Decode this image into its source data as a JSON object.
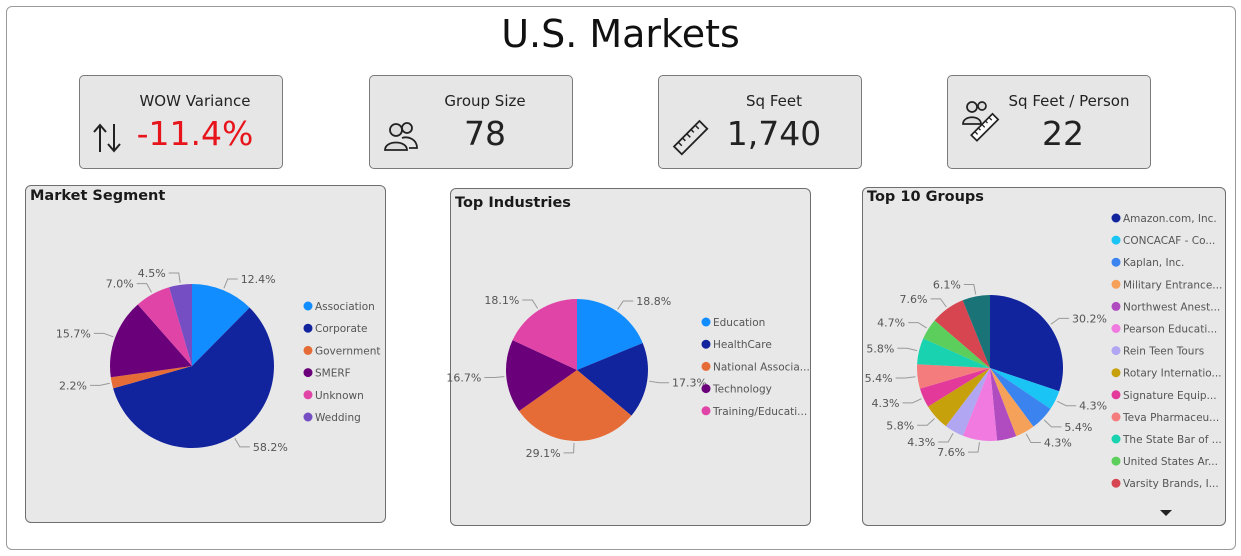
{
  "page": {
    "title": "U.S. Markets"
  },
  "kpis": [
    {
      "label": "WOW Variance",
      "value": "-11.4%",
      "icon": "up-down-arrows-icon",
      "negative": true
    },
    {
      "label": "Group Size",
      "value": "78",
      "icon": "people-group-icon",
      "negative": false
    },
    {
      "label": "Sq Feet",
      "value": "1,740",
      "icon": "ruler-icon",
      "negative": false
    },
    {
      "label": "Sq Feet / Person",
      "value": "22",
      "icon": "people-ruler-icon",
      "negative": false
    }
  ],
  "chart_data": [
    {
      "type": "pie",
      "title": "Market Segment",
      "legend": "right",
      "series": [
        {
          "name": "Association",
          "value": 12.4,
          "label": "12.4%",
          "color": "#118dff"
        },
        {
          "name": "Corporate",
          "value": 58.2,
          "label": "58.2%",
          "color": "#12239e"
        },
        {
          "name": "Government",
          "value": 2.2,
          "label": "2.2%",
          "color": "#e66c37"
        },
        {
          "name": "SMERF",
          "value": 15.7,
          "label": "15.7%",
          "color": "#6b007b"
        },
        {
          "name": "Unknown",
          "value": 7.0,
          "label": "7.0%",
          "color": "#e044a7"
        },
        {
          "name": "Wedding",
          "value": 4.5,
          "label": "4.5%",
          "color": "#744ec2"
        }
      ]
    },
    {
      "type": "pie",
      "title": "Top Industries",
      "legend": "right",
      "series": [
        {
          "name": "Education",
          "value": 18.8,
          "label": "18.8%",
          "color": "#118dff"
        },
        {
          "name": "HealthCare",
          "value": 17.3,
          "label": "17.3%",
          "color": "#12239e"
        },
        {
          "name": "National Associa...",
          "value": 29.1,
          "label": "29.1%",
          "color": "#e66c37"
        },
        {
          "name": "Technology",
          "value": 16.7,
          "label": "16.7%",
          "color": "#6b007b"
        },
        {
          "name": "Training/Educati...",
          "value": 18.1,
          "label": "18.1%",
          "color": "#e044a7"
        }
      ]
    },
    {
      "type": "pie",
      "title": "Top 10 Groups",
      "legend": "right",
      "series": [
        {
          "name": "Amazon.com, Inc.",
          "value": 30.2,
          "label": "30.2%",
          "color": "#12239e"
        },
        {
          "name": "CONCACAF - Co...",
          "value": 4.3,
          "label": "4.3%",
          "color": "#1ac4f5"
        },
        {
          "name": "Kaplan, Inc.",
          "value": 5.4,
          "label": "5.4%",
          "color": "#3b84f0"
        },
        {
          "name": "Military Entrance...",
          "value": 4.3,
          "label": "4.3%",
          "color": "#f5a15a"
        },
        {
          "name": "Northwest Anest...",
          "value": 4.3,
          "label": "",
          "color": "#b04cc0"
        },
        {
          "name": "Pearson Educati...",
          "value": 7.6,
          "label": "7.6%",
          "color": "#f07ae0"
        },
        {
          "name": "Rein Teen Tours",
          "value": 4.3,
          "label": "4.3%",
          "color": "#b0a6f2"
        },
        {
          "name": "Rotary Internatio...",
          "value": 5.8,
          "label": "5.8%",
          "color": "#c7a10b"
        },
        {
          "name": "Signature Equip...",
          "value": 4.3,
          "label": "4.3%",
          "color": "#e2399b"
        },
        {
          "name": "Teva Pharmaceu...",
          "value": 5.4,
          "label": "5.4%",
          "color": "#f47c7c"
        },
        {
          "name": "The State Bar of ...",
          "value": 5.8,
          "label": "5.8%",
          "color": "#19d2b0"
        },
        {
          "name": "United States Ar...",
          "value": 4.7,
          "label": "4.7%",
          "color": "#5cce5c"
        },
        {
          "name": "Varsity Brands, I...",
          "value": 7.6,
          "label": "7.6%",
          "color": "#d64550"
        },
        {
          "name": "",
          "value": 6.1,
          "label": "6.1%",
          "color": "#1a7376"
        }
      ]
    }
  ]
}
